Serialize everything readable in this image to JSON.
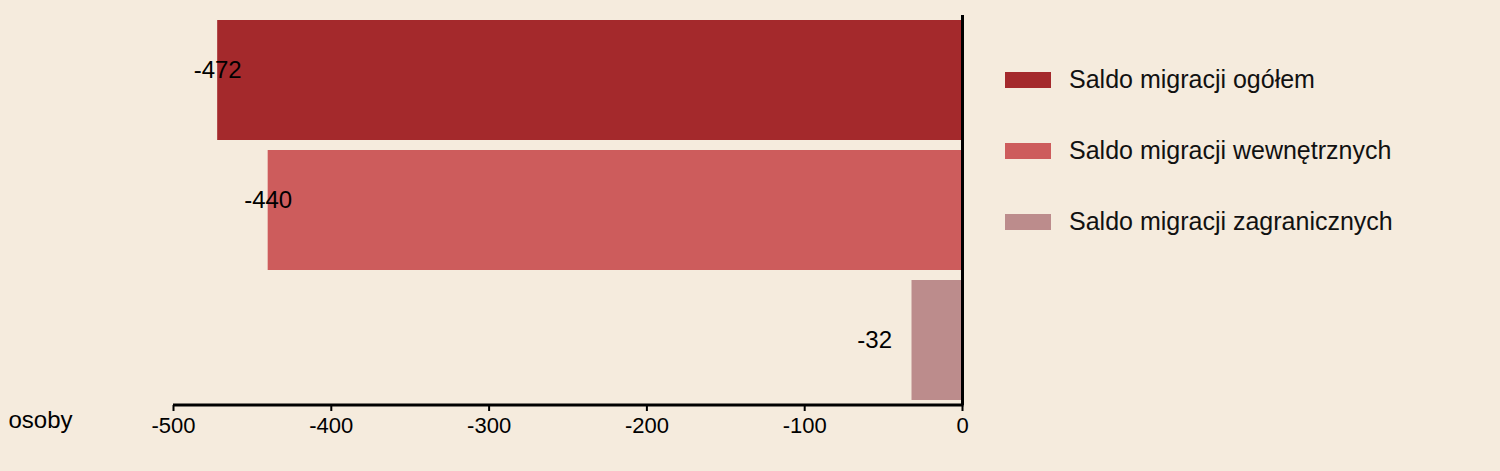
{
  "chart_data": {
    "type": "bar",
    "orientation": "horizontal",
    "categories": [
      "Saldo migracji ogółem",
      "Saldo migracji wewnętrznych",
      "Saldo migracji zagranicznych"
    ],
    "values": [
      -472,
      -440,
      -32
    ],
    "colors": [
      "#a4292c",
      "#cd5c5c",
      "#bc8c8c"
    ],
    "x_label": "osoby",
    "xlim": [
      -500,
      0
    ],
    "xticks": [
      -500,
      -400,
      -300,
      -200,
      -100,
      0
    ],
    "data_labels": true,
    "legend": "right",
    "tick_labels": "x",
    "grid": false
  }
}
